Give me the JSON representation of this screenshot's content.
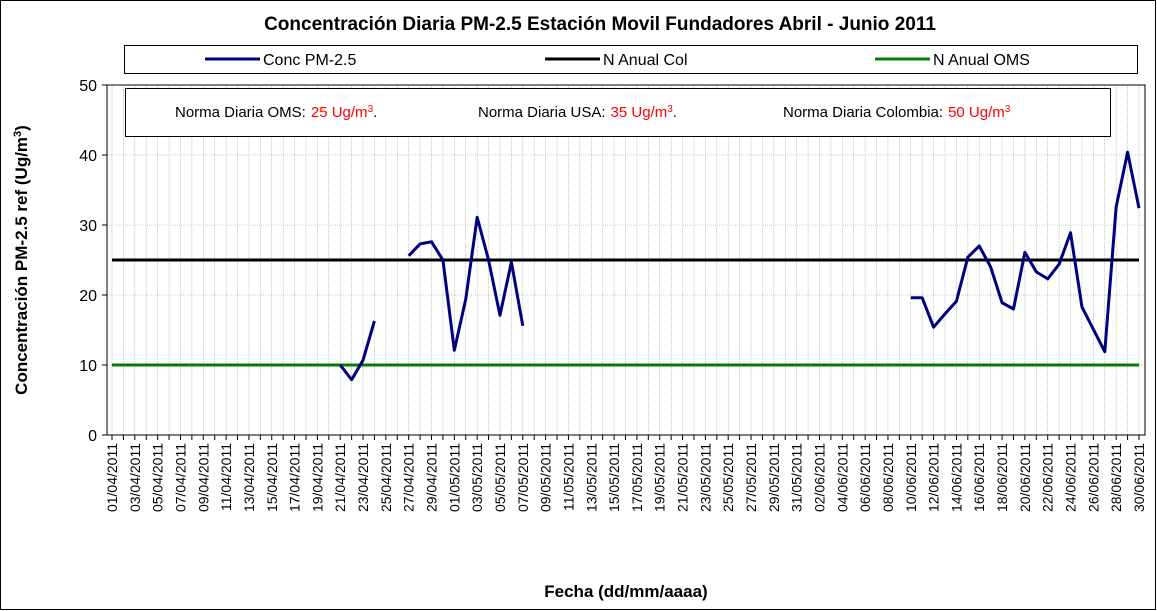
{
  "chart_data": {
    "type": "line",
    "title": "Concentración Diaria PM-2.5 Estación Movil Fundadores Abril - Junio 2011",
    "x_label": "Fecha (dd/mm/aaaa)",
    "y_label": {
      "text": "Concentración PM-2.5 ref (Ug/m",
      "sup": "3",
      "suffix": ")"
    },
    "annotations": [
      {
        "text": "Norma Diaria OMS:",
        "highlight": "25 Ug/m",
        "sup": "3",
        "suffix": "."
      },
      {
        "text": "Norma Diaria USA:",
        "highlight": "35 Ug/m",
        "sup": "3",
        "suffix": "."
      },
      {
        "text": "Norma Diaria Colombia:",
        "highlight": "50 Ug/m",
        "sup": "3"
      }
    ],
    "highlight_color": "#ff0000",
    "categories": [
      "01/04/2011",
      null,
      "03/04/2011",
      null,
      "05/04/2011",
      null,
      "07/04/2011",
      null,
      "09/04/2011",
      null,
      "11/04/2011",
      null,
      "13/04/2011",
      null,
      "15/04/2011",
      null,
      "17/04/2011",
      null,
      "19/04/2011",
      null,
      "21/04/2011",
      null,
      "23/04/2011",
      null,
      "25/04/2011",
      null,
      "27/04/2011",
      null,
      "29/04/2011",
      null,
      "01/05/2011",
      null,
      "03/05/2011",
      null,
      "05/05/2011",
      null,
      "07/05/2011",
      null,
      "09/05/2011",
      null,
      "11/05/2011",
      null,
      "13/05/2011",
      null,
      "15/05/2011",
      null,
      "17/05/2011",
      null,
      "19/05/2011",
      null,
      "21/05/2011",
      null,
      "23/05/2011",
      null,
      "25/05/2011",
      null,
      "27/05/2011",
      null,
      "29/05/2011",
      null,
      "31/05/2011",
      null,
      "02/06/2011",
      null,
      "04/06/2011",
      null,
      "06/06/2011",
      null,
      "08/06/2011",
      null,
      "10/06/2011",
      null,
      "12/06/2011",
      null,
      "14/06/2011",
      null,
      "16/06/2011",
      null,
      "18/06/2011",
      null,
      "20/06/2011",
      null,
      "22/06/2011",
      null,
      "24/06/2011",
      null,
      "26/06/2011",
      null,
      "28/06/2011",
      null,
      "30/06/2011"
    ],
    "series": [
      {
        "name": "Conc PM-2.5",
        "color": "#000080",
        "values": [
          null,
          null,
          null,
          null,
          null,
          null,
          null,
          null,
          null,
          null,
          null,
          null,
          null,
          null,
          null,
          null,
          null,
          null,
          null,
          null,
          10.0,
          7.9,
          10.7,
          16.3,
          null,
          null,
          25.6,
          27.3,
          27.6,
          25.0,
          12.1,
          19.4,
          31.1,
          25.0,
          17.1,
          24.7,
          15.6,
          null,
          null,
          null,
          null,
          null,
          null,
          null,
          null,
          null,
          null,
          null,
          null,
          null,
          null,
          null,
          null,
          null,
          null,
          null,
          null,
          null,
          null,
          null,
          null,
          null,
          null,
          null,
          null,
          null,
          null,
          null,
          null,
          null,
          19.6,
          19.6,
          15.4,
          17.3,
          19.1,
          25.4,
          27.0,
          24.0,
          18.9,
          18.0,
          26.1,
          23.3,
          22.3,
          24.4,
          28.9,
          18.3,
          15.1,
          11.9,
          32.6,
          40.4,
          32.4
        ]
      },
      {
        "name": "N Anual Col",
        "color": "#000000",
        "values": [
          25,
          25,
          25,
          25,
          25,
          25,
          25,
          25,
          25,
          25,
          25,
          25,
          25,
          25,
          25,
          25,
          25,
          25,
          25,
          25,
          25,
          25,
          25,
          25,
          25,
          25,
          25,
          25,
          25,
          25,
          25,
          25,
          25,
          25,
          25,
          25,
          25,
          25,
          25,
          25,
          25,
          25,
          25,
          25,
          25,
          25,
          25,
          25,
          25,
          25,
          25,
          25,
          25,
          25,
          25,
          25,
          25,
          25,
          25,
          25,
          25,
          25,
          25,
          25,
          25,
          25,
          25,
          25,
          25,
          25,
          25,
          25,
          25,
          25,
          25,
          25,
          25,
          25,
          25,
          25,
          25,
          25,
          25,
          25,
          25,
          25,
          25,
          25,
          25,
          25,
          25
        ]
      },
      {
        "name": "N Anual OMS",
        "color": "#008000",
        "values": [
          10,
          10,
          10,
          10,
          10,
          10,
          10,
          10,
          10,
          10,
          10,
          10,
          10,
          10,
          10,
          10,
          10,
          10,
          10,
          10,
          10,
          10,
          10,
          10,
          10,
          10,
          10,
          10,
          10,
          10,
          10,
          10,
          10,
          10,
          10,
          10,
          10,
          10,
          10,
          10,
          10,
          10,
          10,
          10,
          10,
          10,
          10,
          10,
          10,
          10,
          10,
          10,
          10,
          10,
          10,
          10,
          10,
          10,
          10,
          10,
          10,
          10,
          10,
          10,
          10,
          10,
          10,
          10,
          10,
          10,
          10,
          10,
          10,
          10,
          10,
          10,
          10,
          10,
          10,
          10,
          10,
          10,
          10,
          10,
          10,
          10,
          10,
          10,
          10,
          10,
          10
        ]
      }
    ],
    "ylim": [
      0,
      50
    ],
    "yticks": [
      0,
      10,
      20,
      30,
      40,
      50
    ],
    "grid": true
  }
}
